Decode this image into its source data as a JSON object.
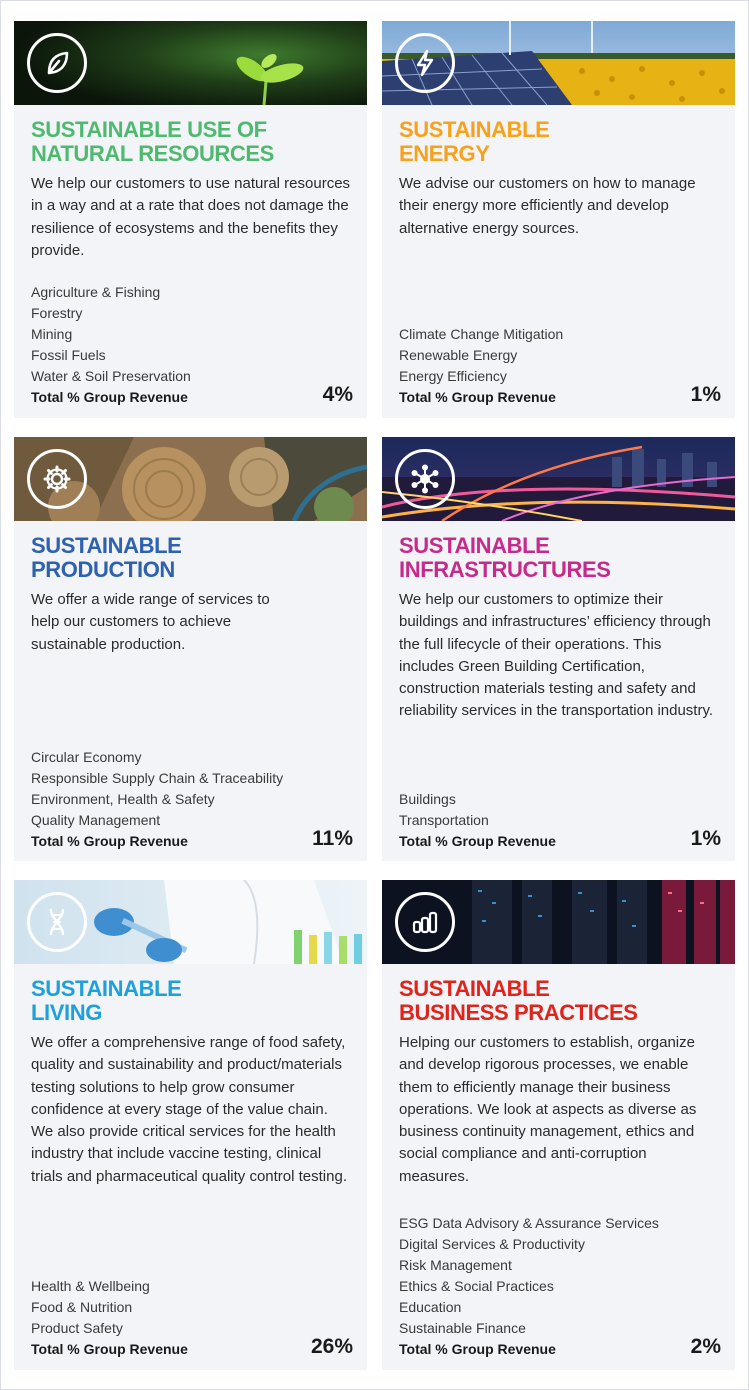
{
  "cards": [
    {
      "title_line1": "SUSTAINABLE USE OF",
      "title_line2": "NATURAL RESOURCES",
      "description": "We help our customers to use natural resources in a way and at a rate that does not damage the resilience of ecosystems and the benefits they provide.",
      "items": [
        "Agriculture & Fishing",
        "Forestry",
        "Mining",
        "Fossil Fuels",
        "Water & Soil Preservation"
      ],
      "total_label": "Total % Group Revenue",
      "total_value": "4%",
      "icon": "leaf-icon",
      "accent": "#4fba6f"
    },
    {
      "title_line1": "SUSTAINABLE",
      "title_line2": "ENERGY",
      "description": "We advise our customers on how to manage their energy more efficiently and develop alternative energy sources.",
      "items": [
        "Climate Change Mitigation",
        "Renewable Energy",
        "Energy Efficiency"
      ],
      "total_label": "Total % Group Revenue",
      "total_value": "1%",
      "icon": "lightning-bolt-icon",
      "accent": "#f7a21b"
    },
    {
      "title_line1": "SUSTAINABLE",
      "title_line2": "PRODUCTION",
      "description": "We offer a wide range of services to help our customers to achieve sustainable production.",
      "items": [
        "Circular Economy",
        "Responsible Supply Chain & Traceability",
        "Environment, Health & Safety",
        "Quality Management"
      ],
      "total_label": "Total % Group Revenue",
      "total_value": "11%",
      "icon": "gear-icon",
      "accent": "#2f62ae"
    },
    {
      "title_line1": "SUSTAINABLE",
      "title_line2": "INFRASTRUCTURES",
      "description": "We help our customers to optimize their buildings and infrastructures’ efficiency through the full lifecycle of their operations. This includes Green Building Certification, construction materials testing and safety and reliability services in the transportation industry.",
      "items": [
        "Buildings",
        "Transportation"
      ],
      "total_label": "Total % Group Revenue",
      "total_value": "1%",
      "icon": "network-hub-icon",
      "accent": "#c72a8a"
    },
    {
      "title_line1": "SUSTAINABLE",
      "title_line2": "LIVING",
      "description": "We offer a comprehensive range of food safety, quality and sustainability and product/materials testing solutions to help grow consumer confidence at every stage of the value chain. We also provide critical services for the health industry that include vaccine testing, clinical trials and pharmaceutical quality control testing.",
      "items": [
        "Health & Wellbeing",
        "Food & Nutrition",
        "Product Safety"
      ],
      "total_label": "Total % Group Revenue",
      "total_value": "26%",
      "icon": "dna-icon",
      "accent": "#1ea0db"
    },
    {
      "title_line1": "SUSTAINABLE",
      "title_line2": "BUSINESS PRACTICES",
      "description": "Helping our customers to establish, organize and develop rigorous processes, we enable them to efficiently manage their business operations. We look at aspects as diverse as business continuity management, ethics and social compliance and anti-corruption measures.",
      "items": [
        "ESG Data Advisory & Assurance Services",
        "Digital Services & Productivity",
        "Risk Management",
        "Ethics & Social Practices",
        "Education",
        "Sustainable Finance"
      ],
      "total_label": "Total % Group Revenue",
      "total_value": "2%",
      "icon": "bar-chart-icon",
      "accent": "#e2231a"
    }
  ]
}
